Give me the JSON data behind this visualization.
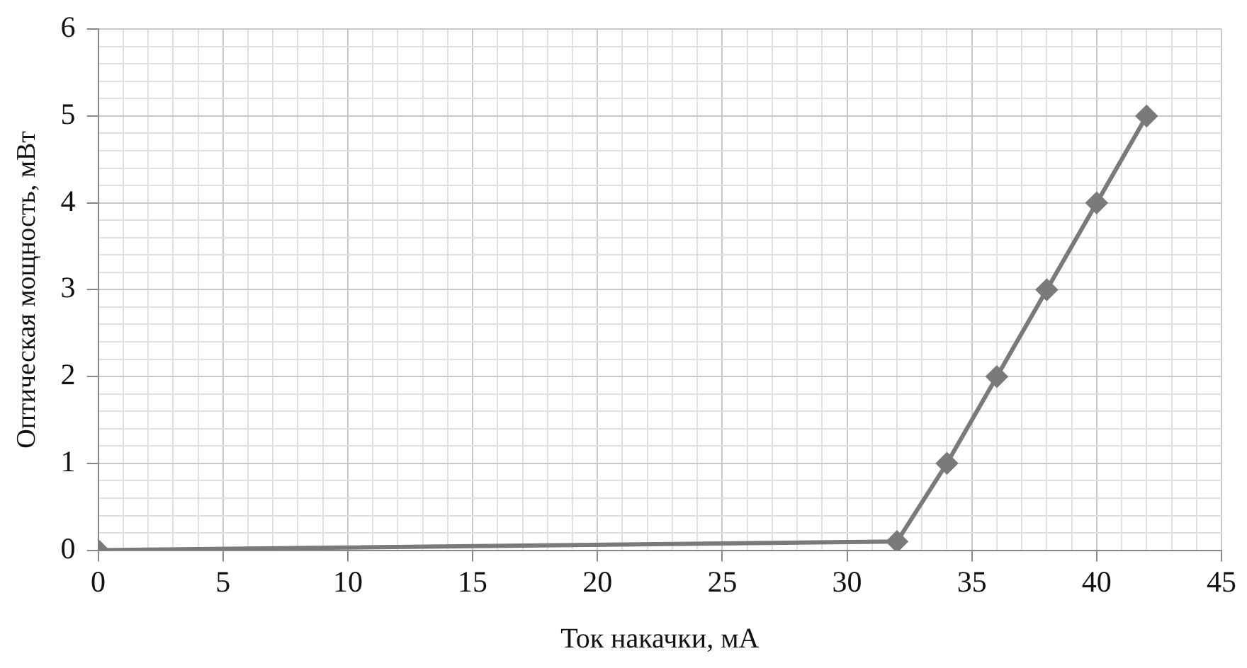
{
  "chart_data": {
    "type": "line",
    "xlabel": "Ток накачки, мА",
    "ylabel": "Оптическая мощность, мВт",
    "x": [
      0,
      32,
      34,
      36,
      38,
      40,
      42
    ],
    "series": [
      {
        "color": "#7a7a7a",
        "values": [
          0,
          0.1,
          1,
          2,
          3,
          4,
          5
        ]
      }
    ],
    "xlim": [
      0,
      45
    ],
    "ylim": [
      0,
      6
    ],
    "xticks": [
      0,
      {
        "value": 1,
        "label": null
      },
      {
        "value": 2,
        "label": null
      },
      {
        "value": 3,
        "label": null
      },
      {
        "value": 4,
        "label": null
      },
      5,
      {
        "value": 6,
        "label": null
      },
      {
        "value": 7,
        "label": null
      },
      {
        "value": 8,
        "label": null
      },
      {
        "value": 9,
        "label": null
      },
      10,
      {
        "value": 11,
        "label": null
      },
      {
        "value": 12,
        "label": null
      },
      {
        "value": 13,
        "label": null
      },
      {
        "value": 14,
        "label": null
      },
      15,
      {
        "value": 16,
        "label": null
      },
      {
        "value": 17,
        "label": null
      },
      {
        "value": 18,
        "label": null
      },
      {
        "value": 19,
        "label": null
      },
      20,
      {
        "value": 21,
        "label": null
      },
      {
        "value": 22,
        "label": null
      },
      {
        "value": 23,
        "label": null
      },
      {
        "value": 24,
        "label": null
      },
      25,
      {
        "value": 26,
        "label": null
      },
      {
        "value": 27,
        "label": null
      },
      {
        "value": 28,
        "label": null
      },
      {
        "value": 29,
        "label": null
      },
      30,
      {
        "value": 31,
        "label": null
      },
      {
        "value": 32,
        "label": null
      },
      {
        "value": 33,
        "label": null
      },
      {
        "value": 34,
        "label": null
      },
      35,
      {
        "value": 36,
        "label": null
      },
      {
        "value": 37,
        "label": null
      },
      {
        "value": 38,
        "label": null
      },
      {
        "value": 39,
        "label": null
      },
      40,
      {
        "value": 41,
        "label": null
      },
      {
        "value": 42,
        "label": null
      },
      {
        "value": 43,
        "label": null
      },
      {
        "value": 44,
        "label": null
      },
      45
    ],
    "yticks": [
      0,
      {
        "value": 0.2,
        "label": null
      },
      {
        "value": 0.4,
        "label": null
      },
      {
        "value": 0.6,
        "label": null
      },
      {
        "value": 0.8,
        "label": null
      },
      1,
      {
        "value": 1.2,
        "label": null
      },
      {
        "value": 1.4,
        "label": null
      },
      {
        "value": 1.6,
        "label": null
      },
      {
        "value": 1.8,
        "label": null
      },
      2,
      {
        "value": 2.2,
        "label": null
      },
      {
        "value": 2.4,
        "label": null
      },
      {
        "value": 2.6,
        "label": null
      },
      {
        "value": 2.8,
        "label": null
      },
      3,
      {
        "value": 3.2,
        "label": null
      },
      {
        "value": 3.4,
        "label": null
      },
      {
        "value": 3.6,
        "label": null
      },
      {
        "value": 3.8,
        "label": null
      },
      4,
      {
        "value": 4.2,
        "label": null
      },
      {
        "value": 4.4,
        "label": null
      },
      {
        "value": 4.6,
        "label": null
      },
      {
        "value": 4.8,
        "label": null
      },
      5,
      {
        "value": 5.2,
        "label": null
      },
      {
        "value": 5.4,
        "label": null
      },
      {
        "value": 5.6,
        "label": null
      },
      {
        "value": 5.8,
        "label": null
      },
      6
    ],
    "grid": true,
    "marker": "diamond",
    "line_style": "solid",
    "legend": false
  }
}
